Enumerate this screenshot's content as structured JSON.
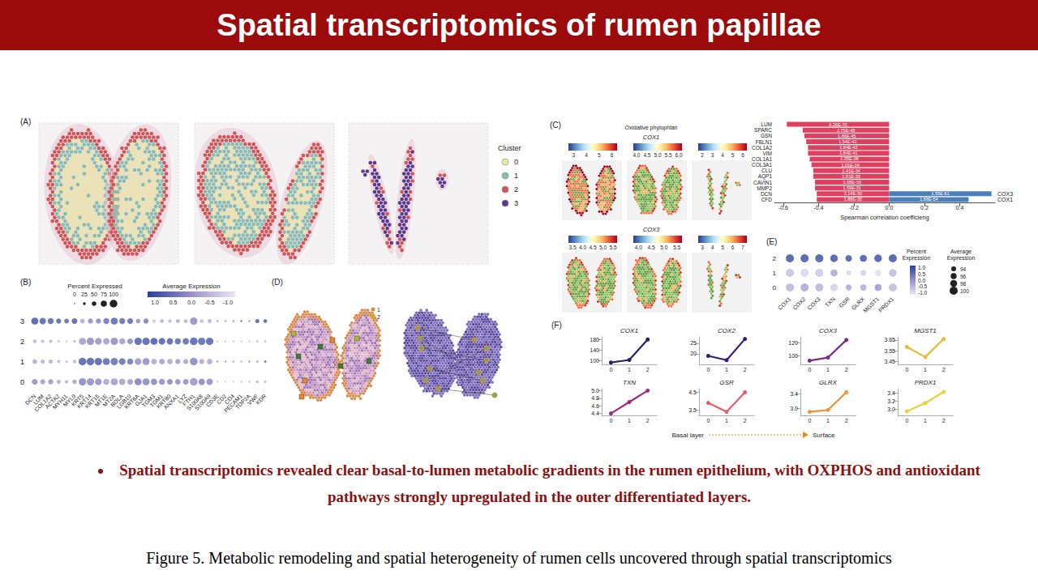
{
  "header": {
    "title": "Spatial transcriptomics of rumen papillae"
  },
  "panels": {
    "A": {
      "label": "(A)",
      "legend": {
        "title": "Cluster",
        "items": [
          {
            "name": "0",
            "color": "#e9e6a6"
          },
          {
            "name": "1",
            "color": "#86bfae"
          },
          {
            "name": "2",
            "color": "#cf5557"
          },
          {
            "name": "3",
            "color": "#5a3a8e"
          }
        ]
      }
    },
    "B": {
      "label": "(B)"
    },
    "C": {
      "label": "(C)",
      "map_title": "Oxidative phylophlan",
      "maps": [
        {
          "gene": "COX1",
          "colorbars": [
            {
              "range": [
                2.6,
                6.4
              ],
              "ticks": [
                3,
                4,
                5,
                6
              ]
            },
            {
              "range": [
                3.85,
                6.15
              ],
              "ticks": [
                {
                  "value": 4,
                  "label": "4.0"
                },
                4.5,
                {
                  "value": 5,
                  "label": "5.0"
                },
                5.5,
                {
                  "value": 6,
                  "label": "6.0"
                }
              ]
            },
            {
              "range": [
                1.6,
                6.4
              ],
              "ticks": [
                2,
                3,
                4,
                5,
                6
              ]
            }
          ]
        },
        {
          "gene": "COX3",
          "colorbars": [
            {
              "range": [
                3.3,
                5.7
              ],
              "ticks": [
                3.5,
                {
                  "value": 4,
                  "label": "4.0"
                },
                4.5,
                {
                  "value": 5,
                  "label": "5.0"
                },
                5.5
              ]
            },
            {
              "range": [
                3.8,
                5.7
              ],
              "ticks": [
                {
                  "value": 4,
                  "label": "4.0"
                },
                4.5,
                {
                  "value": 5,
                  "label": "5.0"
                },
                5.5
              ]
            },
            {
              "range": [
                2.6,
                7.4
              ],
              "ticks": [
                3,
                4,
                5,
                6,
                7
              ]
            }
          ]
        }
      ]
    },
    "D": {
      "label": "(D)",
      "legend": [
        {
          "name": "1",
          "color": "#e8892a"
        },
        {
          "name": "2",
          "color": "#b7b23a"
        }
      ]
    },
    "E": {
      "label": "(E)"
    },
    "F": {
      "label": "(F)",
      "axis_note": {
        "from": "Basal layer",
        "to": "Surface"
      }
    }
  },
  "chart_data": [
    {
      "type": "dot",
      "categories": [
        "DCN",
        "LUM",
        "COL1A2",
        "ACTA2",
        "MYH11",
        "MYL9",
        "KRT5",
        "KRT14",
        "KRT15",
        "MT1E",
        "MT2A",
        "BOLA",
        "LGB10",
        "KRT6A",
        "GJA1",
        "TGM3",
        "TGM1",
        "KRT80",
        "ANXA1",
        "LYZ",
        "FTH1",
        "S100A8",
        "S100A9",
        "CD3E",
        "CD2",
        "CD4",
        "PECAM1",
        "TOP2A",
        "VWF",
        "KDR"
      ],
      "clusters": [
        "0",
        "1",
        "2",
        "3"
      ],
      "percent_expressed": [
        [
          70,
          60,
          60,
          45,
          35,
          50,
          95,
          95,
          85,
          75,
          90,
          80,
          70,
          90,
          90,
          80,
          75,
          70,
          65,
          70,
          100,
          80,
          80,
          6,
          4,
          5,
          8,
          6,
          25,
          20
        ],
        [
          50,
          45,
          45,
          30,
          20,
          35,
          100,
          100,
          95,
          90,
          95,
          85,
          75,
          85,
          90,
          70,
          70,
          65,
          60,
          60,
          100,
          60,
          65,
          8,
          6,
          6,
          10,
          10,
          20,
          20
        ],
        [
          40,
          35,
          35,
          20,
          10,
          25,
          90,
          95,
          85,
          80,
          95,
          75,
          70,
          95,
          95,
          90,
          85,
          80,
          75,
          80,
          100,
          95,
          95,
          5,
          5,
          5,
          8,
          5,
          15,
          15
        ],
        [
          90,
          80,
          75,
          60,
          55,
          70,
          50,
          60,
          60,
          75,
          90,
          75,
          70,
          50,
          60,
          30,
          40,
          35,
          40,
          40,
          95,
          40,
          45,
          10,
          8,
          10,
          15,
          12,
          45,
          40
        ]
      ],
      "average_expression": [
        [
          0.2,
          0.0,
          0.1,
          -0.2,
          -0.3,
          -0.1,
          0.3,
          0.2,
          0.2,
          -0.2,
          0.0,
          -0.1,
          0.0,
          0.4,
          0.3,
          0.3,
          0.2,
          0.3,
          0.2,
          0.2,
          0.1,
          0.3,
          0.2,
          -0.3,
          -0.4,
          -0.3,
          -0.3,
          -0.2,
          -0.4,
          -0.3
        ],
        [
          -0.2,
          -0.3,
          -0.3,
          -0.4,
          -0.4,
          -0.3,
          0.9,
          0.9,
          0.9,
          0.8,
          0.7,
          0.7,
          0.6,
          0.1,
          0.2,
          -0.2,
          -0.1,
          -0.2,
          0.0,
          -0.1,
          0.3,
          -0.2,
          -0.2,
          0.5,
          0.4,
          0.2,
          -0.1,
          0.3,
          -0.2,
          0.6
        ],
        [
          -0.4,
          -0.5,
          -0.4,
          -0.5,
          -0.5,
          -0.4,
          0.0,
          0.2,
          0.1,
          0.0,
          0.2,
          0.0,
          0.3,
          0.9,
          0.9,
          1.0,
          0.9,
          0.9,
          0.8,
          0.8,
          0.9,
          0.8,
          0.9,
          -0.3,
          -0.3,
          -0.3,
          -0.4,
          -0.3,
          -0.4,
          -0.4
        ],
        [
          1.0,
          0.9,
          0.8,
          0.9,
          0.8,
          0.9,
          -0.2,
          0.2,
          0.3,
          0.6,
          0.8,
          0.7,
          0.8,
          0.2,
          0.5,
          -0.5,
          -0.3,
          -0.4,
          -0.2,
          -0.3,
          0.2,
          -0.5,
          -0.4,
          0.3,
          0.2,
          0.4,
          0.5,
          0.3,
          0.9,
          0.9
        ]
      ],
      "size_legend": {
        "title": "Percent Expressed",
        "ticks": [
          0,
          25,
          50,
          75,
          100
        ]
      },
      "color_legend": {
        "title": "Average Expression",
        "range": [
          -1.2,
          1.2
        ],
        "ticks": [
          {
            "value": 1,
            "label": "1.0"
          },
          0.5,
          {
            "value": 0,
            "label": "0.0"
          },
          -0.5,
          {
            "value": -1,
            "label": "-1.0"
          }
        ]
      }
    },
    {
      "type": "bar",
      "orientation": "horizontal",
      "categories": [
        "LUM",
        "SPARC",
        "GSN",
        "FBLN1",
        "COL1A2",
        "VIM",
        "COL1A1",
        "COL3A1",
        "CLU",
        "AQP1",
        "CAVIN1",
        "MMP2",
        "DCN",
        "CFD"
      ],
      "series": [
        {
          "color": "#e0405f",
          "values": [
            -0.58,
            -0.49,
            -0.48,
            -0.47,
            -0.46,
            -0.46,
            -0.45,
            -0.44,
            -0.43,
            -0.43,
            -0.42,
            -0.42,
            -0.41,
            -0.41
          ],
          "bar_texts": [
            "6.26E-70",
            "2.75E-48",
            "1.86E-45",
            "1.54E-42",
            "1.84E-42",
            "1.84E-41",
            "1.05E-38",
            "1.01E-34",
            "1.41E-34",
            "1.51E-33",
            "1.68E-33",
            "1.59E-31",
            "2.14E-30",
            "1.88E-30"
          ]
        },
        {
          "color": "#4b7fb8",
          "values": [
            null,
            null,
            null,
            null,
            null,
            null,
            null,
            null,
            null,
            null,
            null,
            null,
            0.58,
            0.45
          ],
          "bar_texts": [
            null,
            null,
            null,
            null,
            null,
            null,
            null,
            null,
            null,
            null,
            null,
            null,
            "1.55E-61",
            "1.88E-54"
          ],
          "right_labels": [
            null,
            null,
            null,
            null,
            null,
            null,
            null,
            null,
            null,
            null,
            null,
            null,
            "COX3",
            "COX1"
          ]
        }
      ],
      "xlim": [
        -0.65,
        0.6
      ],
      "xticks": [
        -0.6,
        -0.4,
        -0.2,
        {
          "value": 0,
          "label": "0.0"
        },
        0.2,
        0.4
      ],
      "x_label": "Spearman correlation coefficieng",
      "grid": false
    },
    {
      "type": "dot",
      "categories": [
        "COX1",
        "COX2",
        "COX3",
        "TXN",
        "GSR",
        "GLRX",
        "MGST1",
        "PRDX1"
      ],
      "clusters": [
        "0",
        "1",
        "2"
      ],
      "percent_expressed": [
        [
          100,
          100,
          100,
          99,
          96,
          97,
          98,
          100
        ],
        [
          100,
          100,
          100,
          98,
          95,
          96,
          97,
          99
        ],
        [
          100,
          100,
          100,
          99,
          97,
          98,
          99,
          100
        ]
      ],
      "average_expression": [
        [
          -0.4,
          -0.2,
          -0.4,
          -0.8,
          -0.2,
          -0.3,
          0.0,
          -0.5
        ],
        [
          -0.6,
          -0.9,
          -0.7,
          -0.2,
          -0.9,
          -0.8,
          -1.0,
          -0.5
        ],
        [
          1.0,
          1.0,
          1.0,
          1.0,
          1.0,
          1.0,
          1.0,
          1.0
        ]
      ],
      "size_legend": {
        "title": "Average Expression",
        "ticks": [
          94,
          96,
          98,
          100
        ]
      },
      "color_legend": {
        "title": "Percent Expression",
        "range": [
          -1.15,
          1.15
        ],
        "ticks": [
          {
            "value": 1,
            "label": "1.0"
          },
          0.5,
          {
            "value": 0,
            "label": "0.0"
          },
          -0.5,
          {
            "value": -1,
            "label": "-1.0"
          }
        ]
      }
    },
    {
      "type": "line",
      "title": "COX1",
      "categories": [
        "0",
        "1",
        "2"
      ],
      "values": [
        92,
        102,
        180
      ],
      "color": "#2b1d6b",
      "ylim": [
        85,
        190
      ],
      "yticks": [
        100,
        140,
        180
      ],
      "marker": "circle",
      "grid": false
    },
    {
      "type": "line",
      "title": "COX2",
      "categories": [
        "0",
        "1",
        "2"
      ],
      "values": [
        19,
        17,
        27
      ],
      "color": "#3a1c78",
      "ylim": [
        15,
        28
      ],
      "yticks": [
        20,
        25
      ],
      "marker": "circle",
      "grid": false
    },
    {
      "type": "line",
      "title": "COX3",
      "categories": [
        "0",
        "1",
        "2"
      ],
      "values": [
        92,
        97,
        125
      ],
      "color": "#7a2a8e",
      "ylim": [
        86,
        130
      ],
      "yticks": [
        100,
        120
      ],
      "marker": "circle",
      "grid": false
    },
    {
      "type": "line",
      "title": "MGST1",
      "categories": [
        "0",
        "1",
        "2"
      ],
      "values": [
        3.585,
        3.49,
        3.66
      ],
      "color": "#e3bd35",
      "ylim": [
        3.42,
        3.68
      ],
      "yticks": [
        3.45,
        3.55,
        3.65
      ],
      "marker": "circle",
      "grid": false
    },
    {
      "type": "line",
      "title": "TXN",
      "categories": [
        "0",
        "1",
        "2"
      ],
      "values": [
        4.4,
        4.7,
        5.0
      ],
      "color": "#a3287e",
      "ylim": [
        4.35,
        5.05
      ],
      "yticks": [
        4.4,
        4.6,
        4.8,
        {
          "value": 5,
          "label": "5.0"
        }
      ],
      "marker": "circle",
      "grid": false
    },
    {
      "type": "line",
      "title": "GSR",
      "categories": [
        "0",
        "1",
        "2"
      ],
      "values": [
        3.9,
        3.4,
        4.5
      ],
      "color": "#e0606a",
      "ylim": [
        3.2,
        4.7
      ],
      "yticks": [
        3.5,
        4.5
      ],
      "marker": "circle",
      "grid": false
    },
    {
      "type": "line",
      "title": "GLRX",
      "categories": [
        "0",
        "1",
        "2"
      ],
      "values": [
        2.9,
        2.95,
        3.45
      ],
      "color": "#ee9440",
      "ylim": [
        2.8,
        3.55
      ],
      "yticks": [
        {
          "value": 3,
          "label": "3.0"
        },
        3.4
      ],
      "marker": "circle",
      "grid": false
    },
    {
      "type": "line",
      "title": "PRDX1",
      "categories": [
        "0",
        "1",
        "2"
      ],
      "values": [
        2.95,
        3.15,
        3.42
      ],
      "color": "#e8d238",
      "ylim": [
        2.85,
        3.5
      ],
      "yticks": [
        {
          "value": 3,
          "label": "3.0"
        },
        3.2,
        3.4
      ],
      "marker": "circle",
      "grid": false
    }
  ],
  "bullet": "Spatial transcriptomics revealed clear basal-to-lumen metabolic gradients in the rumen epithelium, with OXPHOS and antioxidant pathways strongly upregulated in the outer differentiated layers.",
  "caption": "Figure 5. Metabolic remodeling and spatial heterogeneity of rumen cells uncovered through spatial transcriptomics"
}
